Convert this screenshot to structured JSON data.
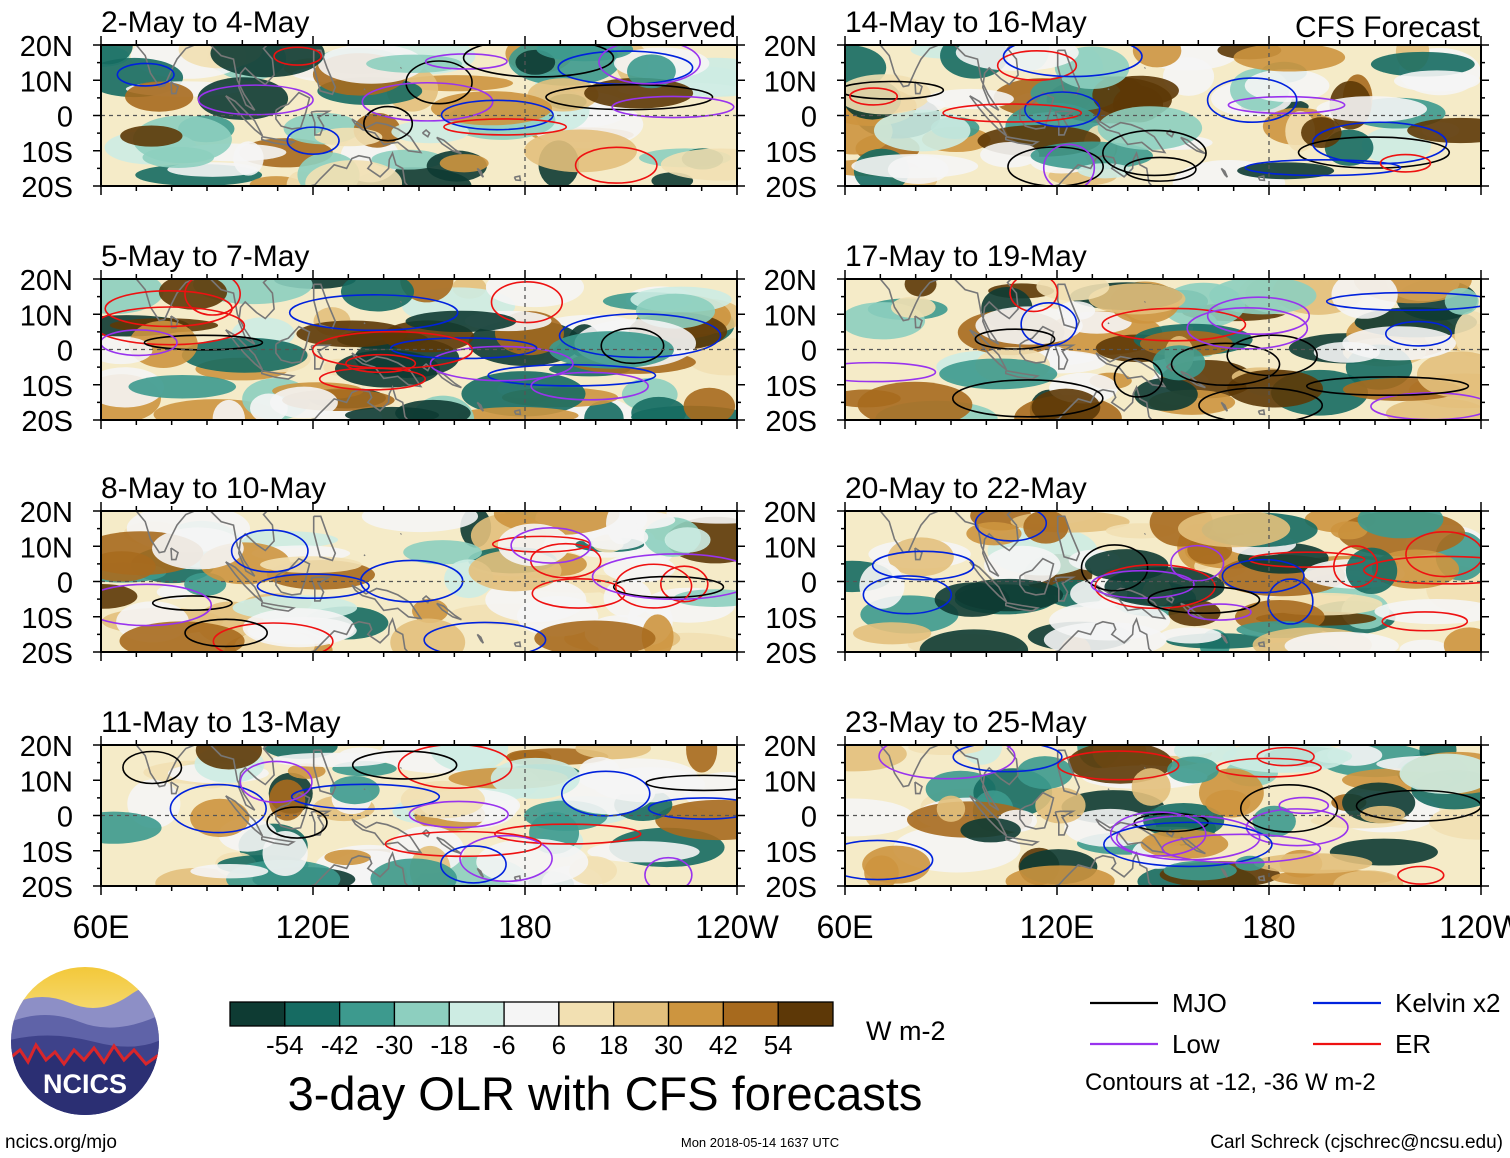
{
  "chart_data": {
    "type": "heatmap",
    "title": "3-day OLR with CFS forecasts",
    "x_ticks": [
      "60E",
      "120E",
      "180",
      "120W"
    ],
    "y_ticks": [
      "20N",
      "10N",
      "0",
      "10S",
      "20S"
    ],
    "lon_range": [
      60,
      240
    ],
    "lat_range": [
      -20,
      20
    ],
    "columns": [
      {
        "label": "Observed",
        "panels": [
          {
            "period": "2-May to 4-May"
          },
          {
            "period": "5-May to 7-May"
          },
          {
            "period": "8-May to 10-May"
          },
          {
            "period": "11-May to 13-May"
          }
        ]
      },
      {
        "label": "CFS Forecast",
        "panels": [
          {
            "period": "14-May to 16-May"
          },
          {
            "period": "17-May to 19-May"
          },
          {
            "period": "20-May to 22-May"
          },
          {
            "period": "23-May to 25-May"
          }
        ]
      }
    ],
    "colorbar": {
      "unit": "W m-2",
      "tick_labels": [
        "-54",
        "-42",
        "-30",
        "-18",
        "-6",
        "6",
        "18",
        "30",
        "42",
        "54"
      ],
      "colors": [
        "#0e3b33",
        "#166b62",
        "#3d9a8e",
        "#8dcfbf",
        "#cdece3",
        "#f5f5f5",
        "#f2e0b2",
        "#e3c07c",
        "#cd953f",
        "#a76a1e",
        "#5d3807"
      ]
    },
    "legend": {
      "items": [
        {
          "label": "MJO",
          "color": "#000000"
        },
        {
          "label": "Kelvin x2",
          "color": "#0022dd"
        },
        {
          "label": "Low",
          "color": "#9933ee"
        },
        {
          "label": "ER",
          "color": "#ee1111"
        }
      ],
      "note": "Contours at -12, -36 W m-2"
    }
  },
  "logo": {
    "text": "NCICS"
  },
  "footer": {
    "url": "ncics.org/mjo",
    "timestamp": "Mon 2018-05-14 1637 UTC",
    "credit": "Carl Schreck (cjschrec@ncsu.edu)"
  }
}
